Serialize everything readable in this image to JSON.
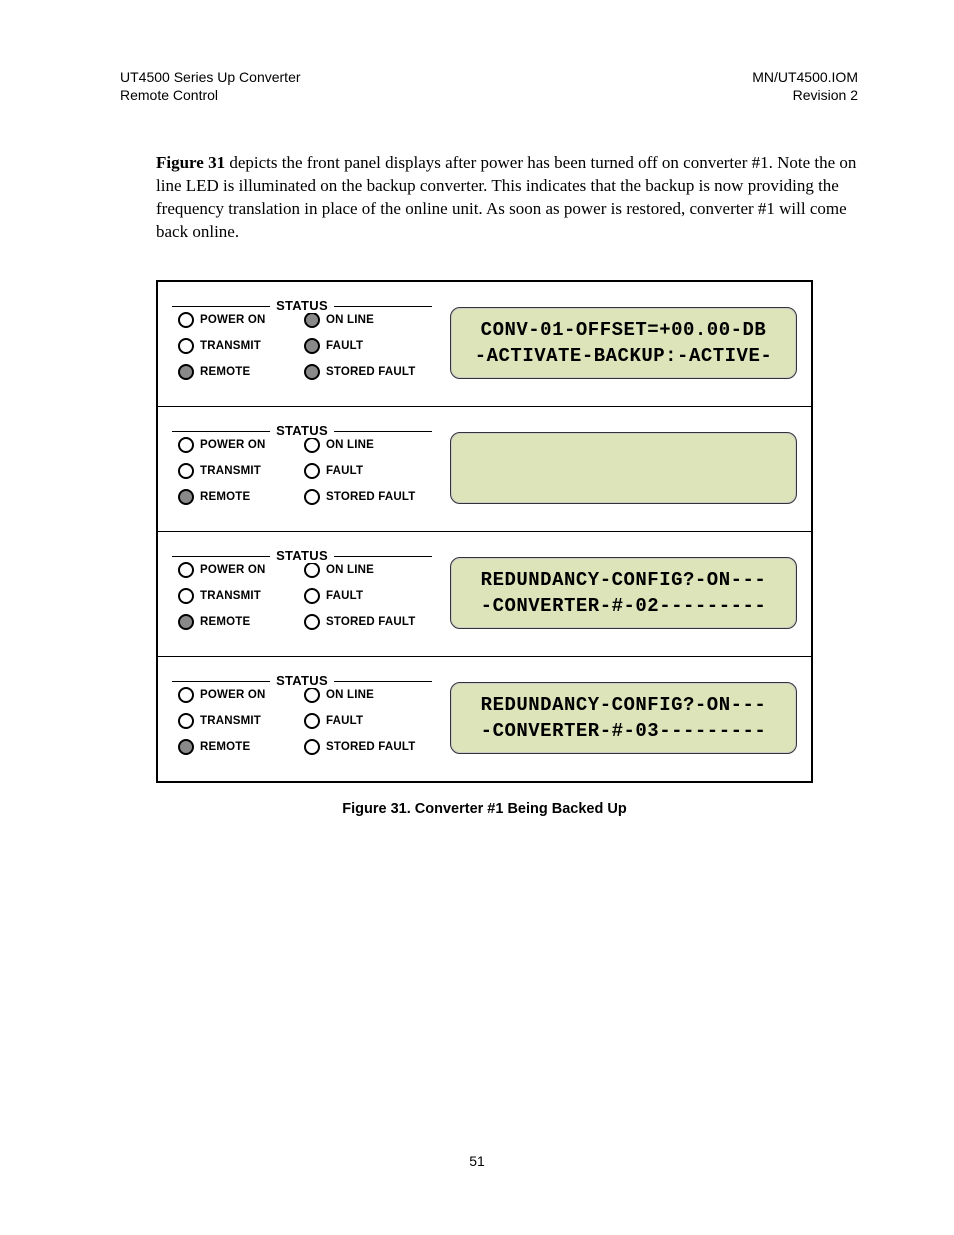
{
  "header": {
    "left_line1": "UT4500 Series Up Converter",
    "left_line2": "Remote Control",
    "right_line1": "MN/UT4500.IOM",
    "right_line2": "Revision 2"
  },
  "paragraph": {
    "lead_bold": "Figure 31",
    "rest": " depicts the front panel displays after power has been turned off on converter #1.  Note the on line LED is illuminated on the backup converter.  This indicates that the backup is now providing the frequency translation in place of the online unit. As soon as power is restored, converter #1 will come back online."
  },
  "status_labels": {
    "title": "STATUS",
    "power_on": "POWER ON",
    "transmit": "TRANSMIT",
    "remote": "REMOTE",
    "on_line": "ON LINE",
    "fault": "FAULT",
    "stored_fault": "STORED FAULT"
  },
  "panels": [
    {
      "leds": {
        "power_on": "off",
        "transmit": "off",
        "remote": "on",
        "on_line": "on",
        "fault": "on",
        "stored_fault": "on"
      },
      "lcd": {
        "line1": "CONV-01-OFFSET=+00.00-DB",
        "line2": "-ACTIVATE-BACKUP:-ACTIVE-"
      }
    },
    {
      "leds": {
        "power_on": "off",
        "transmit": "off",
        "remote": "on",
        "on_line": "off",
        "fault": "off",
        "stored_fault": "off"
      },
      "lcd": {
        "line1": "",
        "line2": ""
      }
    },
    {
      "leds": {
        "power_on": "off",
        "transmit": "off",
        "remote": "on",
        "on_line": "off",
        "fault": "off",
        "stored_fault": "off"
      },
      "lcd": {
        "line1": "REDUNDANCY-CONFIG?-ON---",
        "line2": "-CONVERTER-#-02---------"
      }
    },
    {
      "leds": {
        "power_on": "off",
        "transmit": "off",
        "remote": "on",
        "on_line": "off",
        "fault": "off",
        "stored_fault": "off"
      },
      "lcd": {
        "line1": "REDUNDANCY-CONFIG?-ON---",
        "line2": "-CONVERTER-#-03---------"
      }
    }
  ],
  "caption": "Figure 31.  Converter #1 Being Backed Up",
  "page_number": "51",
  "colors": {
    "lcd_bg": "#dde4b9",
    "led_on": "#898989"
  }
}
